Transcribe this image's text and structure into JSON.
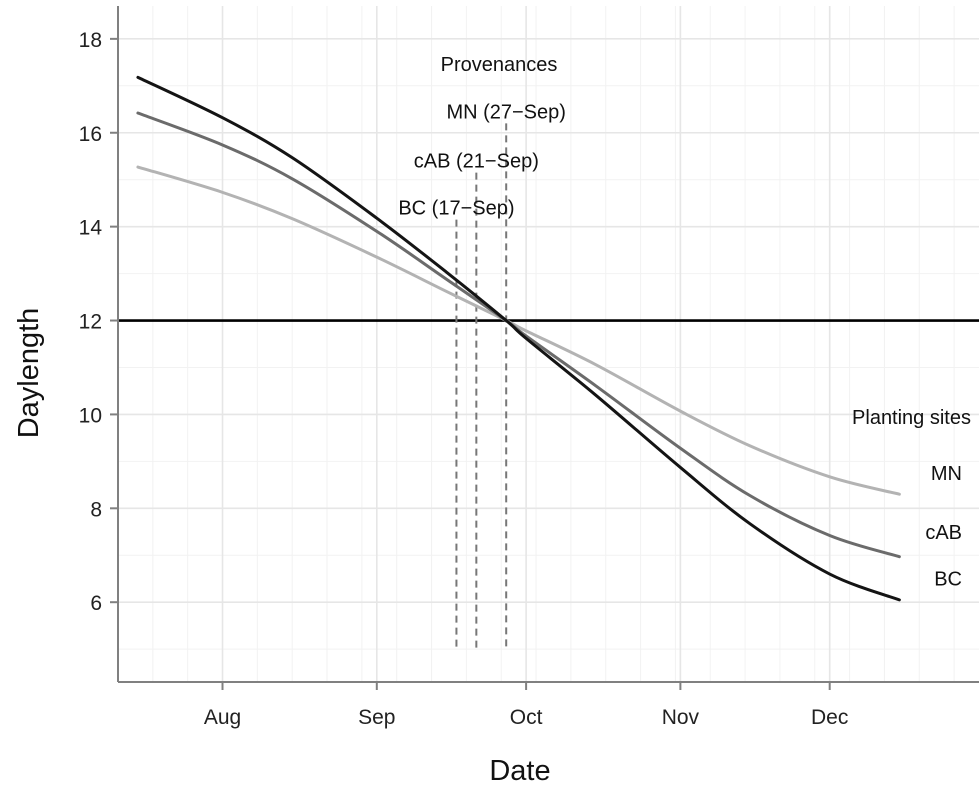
{
  "chart_data": {
    "type": "line",
    "title": "",
    "xlabel": "Date",
    "ylabel": "Daylength",
    "x_ticks": [
      {
        "date": "2020-08-01",
        "label": "Aug"
      },
      {
        "date": "2020-09-01",
        "label": "Sep"
      },
      {
        "date": "2020-10-01",
        "label": "Oct"
      },
      {
        "date": "2020-11-01",
        "label": "Nov"
      },
      {
        "date": "2020-12-01",
        "label": "Dec"
      }
    ],
    "y_ticks": [
      6,
      8,
      10,
      12,
      14,
      16,
      18
    ],
    "xlim": [
      "2020-07-11",
      "2020-12-31"
    ],
    "ylim": [
      4.3,
      18.7
    ],
    "grid": true,
    "reference_line": {
      "y": 12
    },
    "series": [
      {
        "name": "MN",
        "color": "#b3b3b3",
        "points": [
          {
            "date": "2020-07-15",
            "y": 15.27
          },
          {
            "date": "2020-08-01",
            "y": 14.73
          },
          {
            "date": "2020-08-15",
            "y": 14.17
          },
          {
            "date": "2020-09-01",
            "y": 13.35
          },
          {
            "date": "2020-09-15",
            "y": 12.62
          },
          {
            "date": "2020-09-27",
            "y": 12.0
          },
          {
            "date": "2020-10-01",
            "y": 11.78
          },
          {
            "date": "2020-10-15",
            "y": 11.06
          },
          {
            "date": "2020-11-01",
            "y": 10.07
          },
          {
            "date": "2020-11-15",
            "y": 9.33
          },
          {
            "date": "2020-12-01",
            "y": 8.67
          },
          {
            "date": "2020-12-15",
            "y": 8.3
          }
        ]
      },
      {
        "name": "cAB",
        "color": "#6b6b6b",
        "points": [
          {
            "date": "2020-07-15",
            "y": 16.42
          },
          {
            "date": "2020-08-01",
            "y": 15.74
          },
          {
            "date": "2020-08-15",
            "y": 15.02
          },
          {
            "date": "2020-09-01",
            "y": 13.9
          },
          {
            "date": "2020-09-15",
            "y": 12.88
          },
          {
            "date": "2020-09-27",
            "y": 12.0
          },
          {
            "date": "2020-10-01",
            "y": 11.67
          },
          {
            "date": "2020-10-15",
            "y": 10.61
          },
          {
            "date": "2020-11-01",
            "y": 9.28
          },
          {
            "date": "2020-11-15",
            "y": 8.27
          },
          {
            "date": "2020-12-01",
            "y": 7.42
          },
          {
            "date": "2020-12-15",
            "y": 6.97
          }
        ]
      },
      {
        "name": "BC",
        "color": "#141414",
        "points": [
          {
            "date": "2020-07-15",
            "y": 17.18
          },
          {
            "date": "2020-08-01",
            "y": 16.32
          },
          {
            "date": "2020-08-15",
            "y": 15.47
          },
          {
            "date": "2020-09-01",
            "y": 14.18
          },
          {
            "date": "2020-09-15",
            "y": 13.03
          },
          {
            "date": "2020-09-27",
            "y": 12.0
          },
          {
            "date": "2020-10-01",
            "y": 11.62
          },
          {
            "date": "2020-10-15",
            "y": 10.41
          },
          {
            "date": "2020-11-01",
            "y": 8.87
          },
          {
            "date": "2020-11-15",
            "y": 7.67
          },
          {
            "date": "2020-12-01",
            "y": 6.6
          },
          {
            "date": "2020-12-15",
            "y": 6.05
          }
        ]
      }
    ],
    "markers": [
      {
        "label": "MN (27−Sep)",
        "date": "2020-09-27",
        "y_top": 16.2
      },
      {
        "label": "cAB (21−Sep)",
        "date": "2020-09-21",
        "y_top": 15.15
      },
      {
        "label": "BC (17−Sep)",
        "date": "2020-09-17",
        "y_top": 14.15
      }
    ],
    "marker_y_bottom": 5.0,
    "annotations": {
      "provenances": "Provenances",
      "planting_sites": "Planting sites"
    },
    "site_labels": [
      {
        "label": "MN",
        "date": "2020-12-14",
        "y": 8.75
      },
      {
        "label": "cAB",
        "date": "2020-12-14",
        "y": 7.5
      },
      {
        "label": "BC",
        "date": "2020-12-14",
        "y": 6.5
      }
    ]
  }
}
